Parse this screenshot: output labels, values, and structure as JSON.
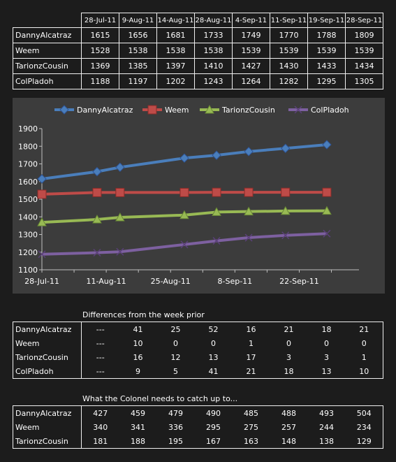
{
  "chart_data": {
    "type": "line",
    "title": "",
    "xlabel": "",
    "ylabel": "",
    "ylim": [
      1100,
      1900
    ],
    "yticks": [
      1100,
      1200,
      1300,
      1400,
      1500,
      1600,
      1700,
      1800,
      1900
    ],
    "xlim": [
      "28-Jul-11",
      "5-Oct-11"
    ],
    "xticks": [
      "28-Jul-11",
      "11-Aug-11",
      "25-Aug-11",
      "8-Sep-11",
      "22-Sep-11"
    ],
    "xtick_dates": [
      "2011-07-28",
      "2011-08-11",
      "2011-08-25",
      "2011-09-08",
      "2011-09-22"
    ],
    "x": [
      "2011-07-28",
      "2011-08-09",
      "2011-08-14",
      "2011-08-28",
      "2011-09-04",
      "2011-09-11",
      "2011-09-19",
      "2011-09-28"
    ],
    "legend": "top",
    "grid": false,
    "series": [
      {
        "name": "DannyAlcatraz",
        "values": [
          1615,
          1656,
          1681,
          1733,
          1749,
          1770,
          1788,
          1809
        ],
        "color": "#4a7ebb",
        "marker": "diamond"
      },
      {
        "name": "Weem",
        "values": [
          1528,
          1538,
          1538,
          1538,
          1539,
          1539,
          1539,
          1539
        ],
        "color": "#be4b48",
        "marker": "square"
      },
      {
        "name": "TarionzCousin",
        "values": [
          1369,
          1385,
          1397,
          1410,
          1427,
          1430,
          1433,
          1434
        ],
        "color": "#98b954",
        "marker": "triangle"
      },
      {
        "name": "ColPladoh",
        "values": [
          1188,
          1197,
          1202,
          1243,
          1264,
          1282,
          1295,
          1305
        ],
        "color": "#7d60a0",
        "marker": "x"
      }
    ]
  },
  "table_ratings": {
    "columns": [
      "28-Jul-11",
      "9-Aug-11",
      "14-Aug-11",
      "28-Aug-11",
      "4-Sep-11",
      "11-Sep-11",
      "19-Sep-11",
      "28-Sep-11"
    ],
    "rows": [
      {
        "name": "DannyAlcatraz",
        "values": [
          "1615",
          "1656",
          "1681",
          "1733",
          "1749",
          "1770",
          "1788",
          "1809"
        ]
      },
      {
        "name": "Weem",
        "values": [
          "1528",
          "1538",
          "1538",
          "1538",
          "1539",
          "1539",
          "1539",
          "1539"
        ]
      },
      {
        "name": "TarionzCousin",
        "values": [
          "1369",
          "1385",
          "1397",
          "1410",
          "1427",
          "1430",
          "1433",
          "1434"
        ]
      },
      {
        "name": "ColPladoh",
        "values": [
          "1188",
          "1197",
          "1202",
          "1243",
          "1264",
          "1282",
          "1295",
          "1305"
        ]
      }
    ]
  },
  "table_differences": {
    "caption": "Differences from the week prior",
    "rows": [
      {
        "name": "DannyAlcatraz",
        "values": [
          "---",
          "41",
          "25",
          "52",
          "16",
          "21",
          "18",
          "21"
        ]
      },
      {
        "name": "Weem",
        "values": [
          "---",
          "10",
          "0",
          "0",
          "1",
          "0",
          "0",
          "0"
        ]
      },
      {
        "name": "TarionzCousin",
        "values": [
          "---",
          "16",
          "12",
          "13",
          "17",
          "3",
          "3",
          "1"
        ]
      },
      {
        "name": "ColPladoh",
        "values": [
          "---",
          "9",
          "5",
          "41",
          "21",
          "18",
          "13",
          "10"
        ]
      }
    ]
  },
  "table_catchup": {
    "caption": "What the Colonel needs to catch up to...",
    "rows": [
      {
        "name": "DannyAlcatraz",
        "values": [
          "427",
          "459",
          "479",
          "490",
          "485",
          "488",
          "493",
          "504"
        ]
      },
      {
        "name": "Weem",
        "values": [
          "340",
          "341",
          "336",
          "295",
          "275",
          "257",
          "244",
          "234"
        ]
      },
      {
        "name": "TarionzCousin",
        "values": [
          "181",
          "188",
          "195",
          "167",
          "163",
          "148",
          "138",
          "129"
        ]
      }
    ]
  }
}
